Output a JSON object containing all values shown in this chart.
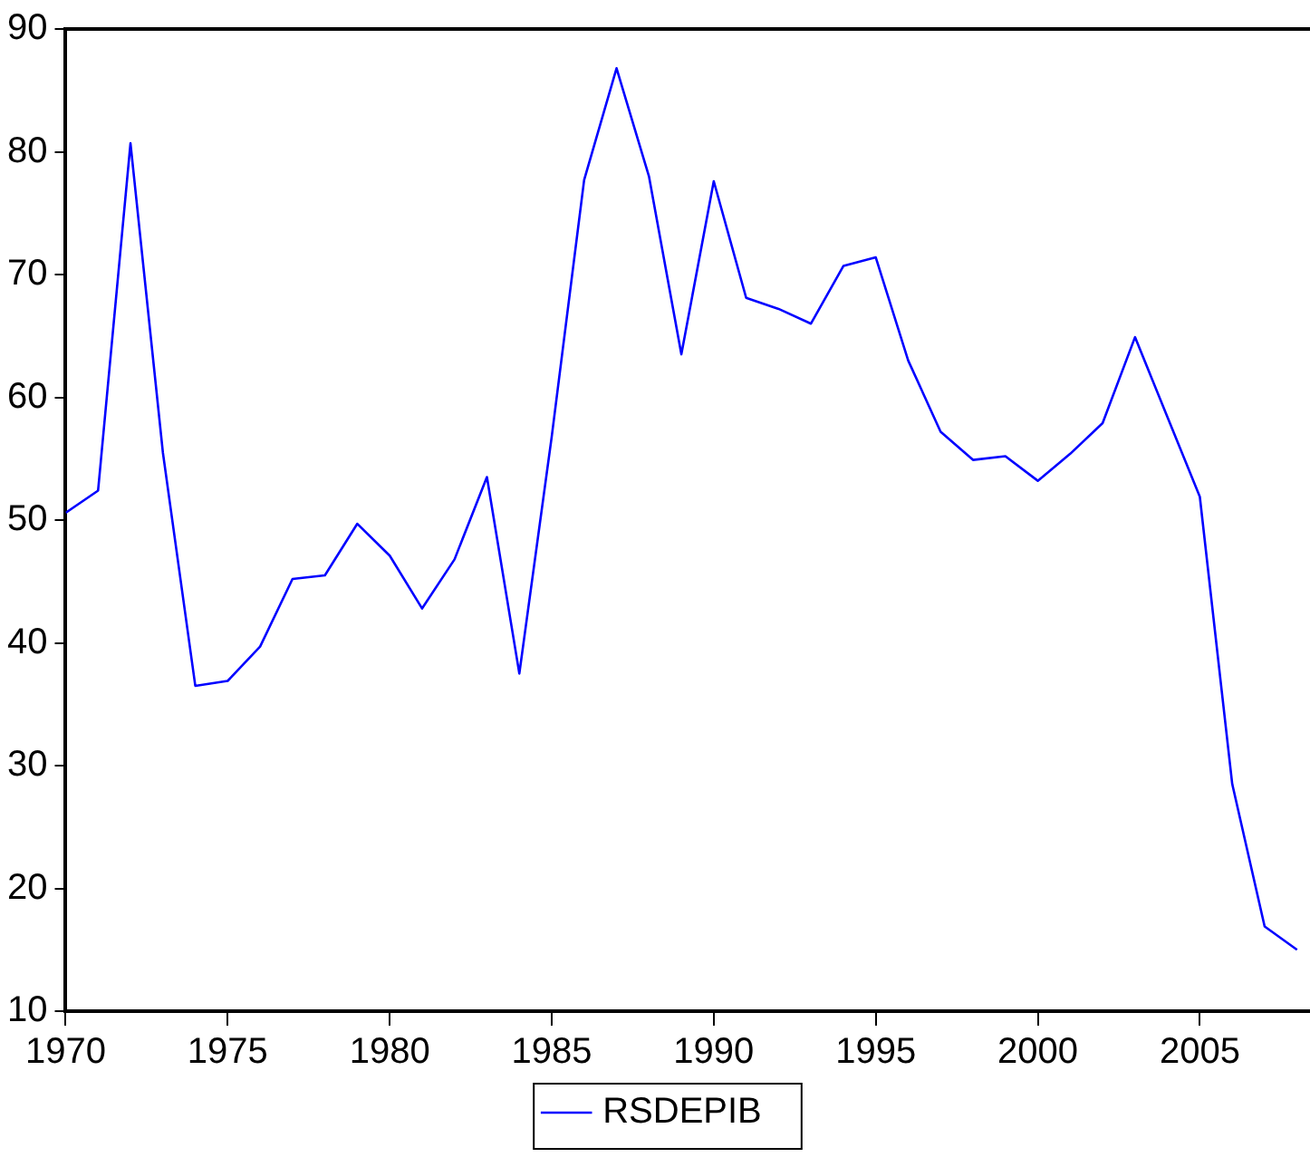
{
  "chart_data": {
    "type": "line",
    "x": [
      1970,
      1971,
      1972,
      1973,
      1974,
      1975,
      1976,
      1977,
      1978,
      1979,
      1980,
      1981,
      1982,
      1983,
      1984,
      1985,
      1986,
      1987,
      1988,
      1989,
      1990,
      1991,
      1992,
      1993,
      1994,
      1995,
      1996,
      1997,
      1998,
      1999,
      2000,
      2001,
      2002,
      2003,
      2004,
      2005,
      2006,
      2007,
      2008
    ],
    "series": [
      {
        "name": "RSDEPIB",
        "color": "#0000ff",
        "values": [
          50.6,
          52.4,
          80.7,
          55.5,
          36.5,
          36.9,
          39.7,
          45.2,
          45.5,
          49.7,
          47.1,
          42.8,
          46.8,
          53.5,
          37.5,
          56.8,
          77.7,
          86.8,
          78.0,
          63.5,
          77.6,
          68.1,
          67.2,
          66.0,
          70.7,
          71.4,
          63.0,
          57.2,
          54.9,
          55.2,
          53.2,
          55.4,
          57.9,
          64.9,
          58.4,
          51.9,
          28.5,
          16.9,
          15.0
        ]
      }
    ],
    "xlim": [
      1970,
      2008.4
    ],
    "xticks": [
      1970,
      1975,
      1980,
      1985,
      1990,
      1995,
      2000,
      2005
    ],
    "ylim": [
      10,
      90
    ],
    "yticks": [
      10,
      20,
      30,
      40,
      50,
      60,
      70,
      80,
      90
    ],
    "grid": false,
    "legend": "bottom",
    "marker": "none",
    "line_style": "solid"
  }
}
